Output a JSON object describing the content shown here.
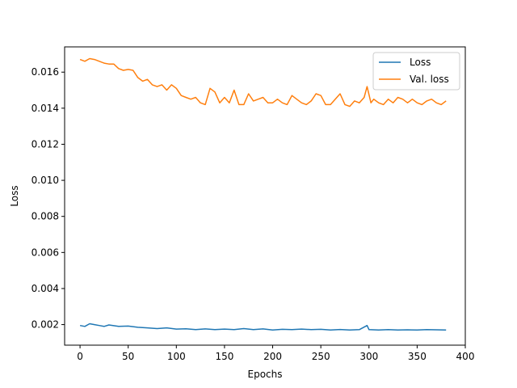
{
  "chart_data": {
    "type": "line",
    "title": "",
    "xlabel": "Epochs",
    "ylabel": "Loss",
    "xlim": [
      -16,
      400
    ],
    "ylim": [
      0.00086,
      0.0174
    ],
    "xticks": [
      0,
      50,
      100,
      150,
      200,
      250,
      300,
      350,
      400
    ],
    "xtick_labels": [
      "0",
      "50",
      "100",
      "150",
      "200",
      "250",
      "300",
      "350",
      "400"
    ],
    "yticks": [
      0.002,
      0.004,
      0.006,
      0.008,
      0.01,
      0.012,
      0.014,
      0.016
    ],
    "ytick_labels": [
      "0.002",
      "0.004",
      "0.006",
      "0.008",
      "0.010",
      "0.012",
      "0.014",
      "0.016"
    ],
    "grid": false,
    "legend_position": "upper-right",
    "series": [
      {
        "name": "Loss",
        "color": "#1f77b4",
        "x": [
          0,
          5,
          10,
          15,
          20,
          25,
          30,
          40,
          50,
          60,
          70,
          80,
          90,
          100,
          110,
          120,
          130,
          140,
          150,
          160,
          170,
          180,
          190,
          200,
          210,
          220,
          230,
          240,
          250,
          260,
          270,
          280,
          290,
          298,
          300,
          310,
          320,
          330,
          340,
          350,
          360,
          370,
          380
        ],
        "values": [
          0.00195,
          0.0019,
          0.00205,
          0.002,
          0.00195,
          0.0019,
          0.00198,
          0.0019,
          0.00192,
          0.00185,
          0.00182,
          0.00178,
          0.00182,
          0.00175,
          0.00177,
          0.00172,
          0.00176,
          0.00172,
          0.00175,
          0.00172,
          0.00178,
          0.00172,
          0.00176,
          0.0017,
          0.00174,
          0.00172,
          0.00175,
          0.00172,
          0.00174,
          0.0017,
          0.00173,
          0.0017,
          0.00172,
          0.00195,
          0.00172,
          0.0017,
          0.00172,
          0.0017,
          0.00171,
          0.0017,
          0.00172,
          0.00171,
          0.0017
        ]
      },
      {
        "name": "Val. loss",
        "color": "#ff7f0e",
        "x": [
          0,
          5,
          10,
          15,
          20,
          25,
          30,
          35,
          40,
          45,
          50,
          55,
          60,
          65,
          70,
          75,
          80,
          85,
          90,
          95,
          100,
          105,
          110,
          115,
          120,
          125,
          130,
          135,
          140,
          145,
          150,
          155,
          160,
          165,
          170,
          175,
          180,
          185,
          190,
          195,
          200,
          205,
          210,
          215,
          220,
          225,
          230,
          235,
          240,
          245,
          250,
          255,
          260,
          265,
          270,
          275,
          280,
          285,
          290,
          295,
          298,
          302,
          305,
          310,
          315,
          320,
          325,
          330,
          335,
          340,
          345,
          350,
          355,
          360,
          365,
          370,
          375,
          380
        ],
        "values": [
          0.0167,
          0.0166,
          0.01675,
          0.0167,
          0.0166,
          0.0165,
          0.01645,
          0.01645,
          0.0162,
          0.0161,
          0.01615,
          0.0161,
          0.0157,
          0.0155,
          0.0156,
          0.0153,
          0.0152,
          0.0153,
          0.015,
          0.0153,
          0.0151,
          0.0147,
          0.0146,
          0.0145,
          0.0146,
          0.0143,
          0.0142,
          0.0151,
          0.0149,
          0.0143,
          0.0146,
          0.0143,
          0.015,
          0.0142,
          0.0142,
          0.0148,
          0.0144,
          0.0145,
          0.0146,
          0.0143,
          0.0143,
          0.0145,
          0.0143,
          0.0142,
          0.0147,
          0.0145,
          0.0143,
          0.0142,
          0.0144,
          0.0148,
          0.0147,
          0.0142,
          0.0142,
          0.0145,
          0.0148,
          0.0142,
          0.0141,
          0.0144,
          0.0143,
          0.0146,
          0.0152,
          0.0143,
          0.0145,
          0.0143,
          0.0142,
          0.0145,
          0.0143,
          0.0146,
          0.0145,
          0.0143,
          0.0145,
          0.0143,
          0.0142,
          0.0144,
          0.0145,
          0.0143,
          0.0142,
          0.0144
        ]
      }
    ]
  }
}
